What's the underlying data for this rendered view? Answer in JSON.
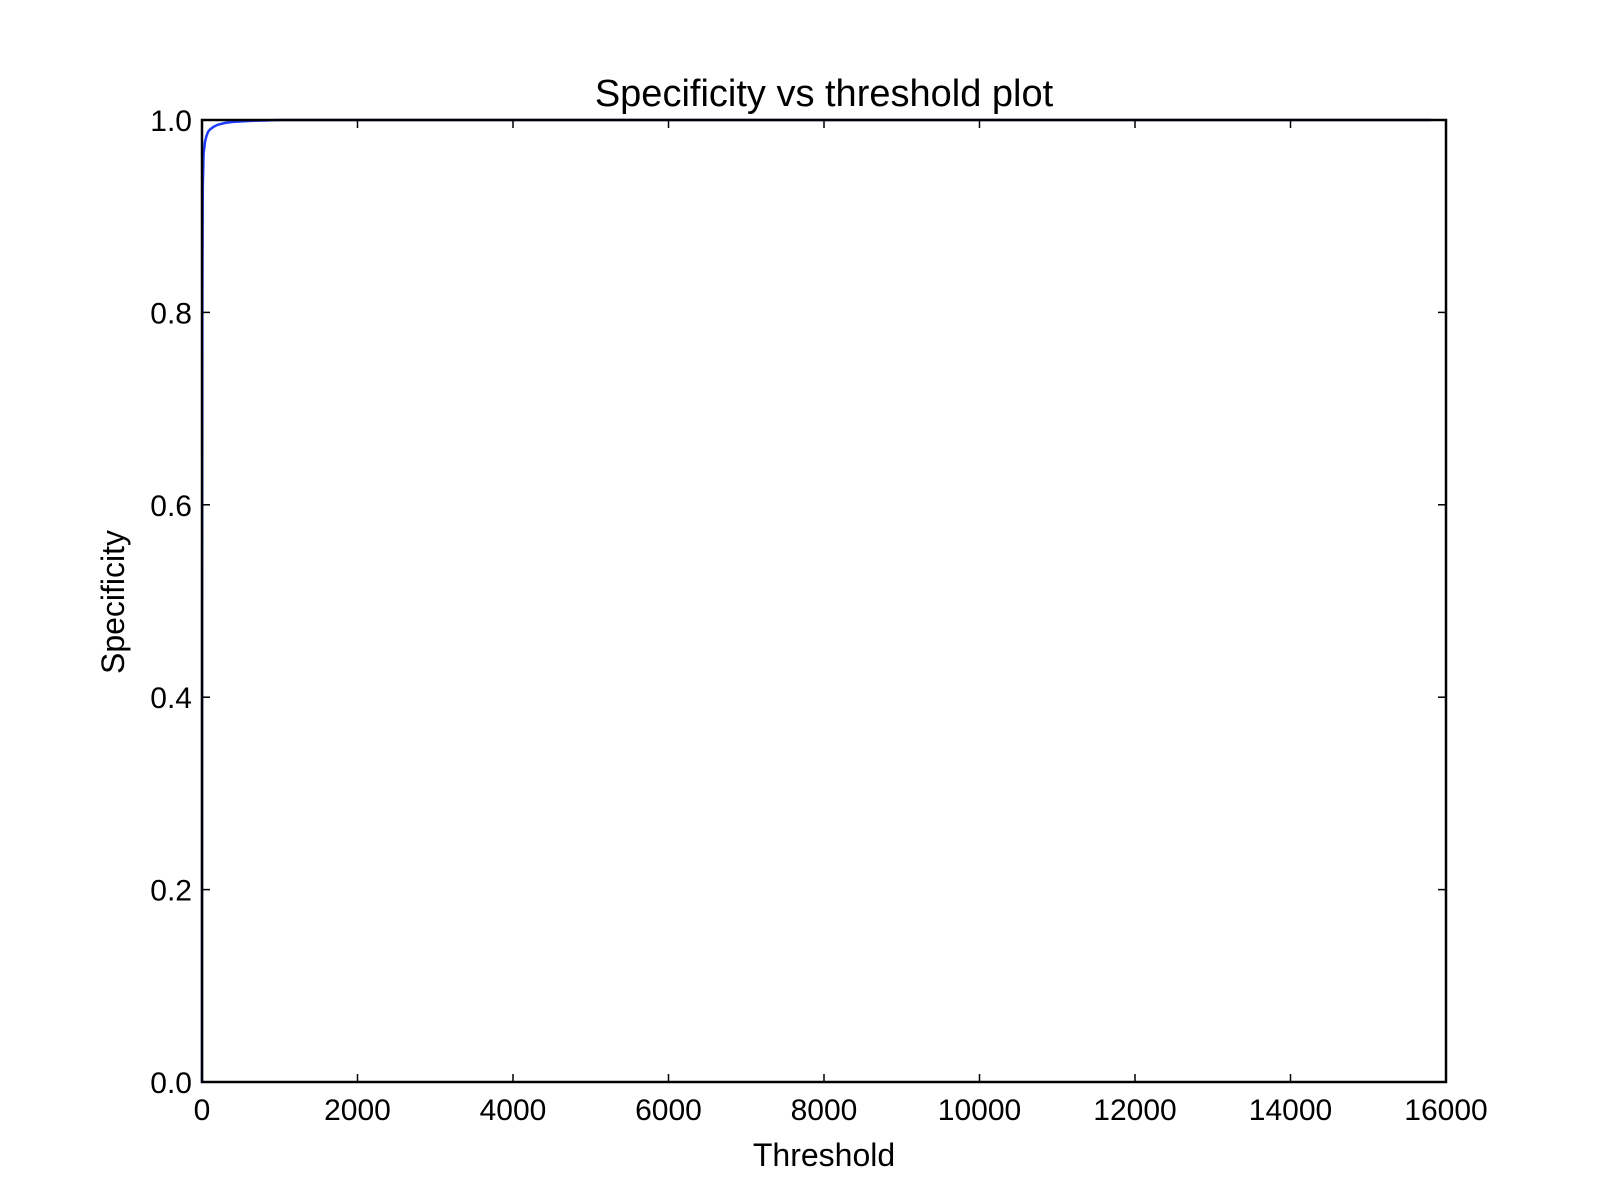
{
  "chart_data": {
    "type": "line",
    "title": "Specificity vs threshold plot",
    "xlabel": "Threshold",
    "ylabel": "Specificity",
    "xlim": [
      0,
      16000
    ],
    "ylim": [
      0.0,
      1.0
    ],
    "x_ticks": [
      0,
      2000,
      4000,
      6000,
      8000,
      10000,
      12000,
      14000,
      16000
    ],
    "x_tick_labels": [
      "0",
      "2000",
      "4000",
      "6000",
      "8000",
      "10000",
      "12000",
      "14000",
      "16000"
    ],
    "y_ticks": [
      0.0,
      0.2,
      0.4,
      0.6,
      0.8,
      1.0
    ],
    "y_tick_labels": [
      "0.0",
      "0.2",
      "0.4",
      "0.6",
      "0.8",
      "1.0"
    ],
    "grid": false,
    "legend": "none",
    "series": [
      {
        "color": "#1f3bff",
        "x": [
          0,
          2,
          5,
          10,
          20,
          40,
          60,
          80,
          100,
          150,
          200,
          300,
          400,
          600,
          800,
          1000,
          2000,
          4000,
          8000,
          12000,
          15800
        ],
        "y": [
          0.0,
          0.5,
          0.82,
          0.93,
          0.965,
          0.978,
          0.984,
          0.988,
          0.99,
          0.993,
          0.995,
          0.997,
          0.998,
          0.999,
          0.9995,
          1.0,
          1.0,
          1.0,
          1.0,
          1.0,
          1.0
        ]
      }
    ]
  }
}
